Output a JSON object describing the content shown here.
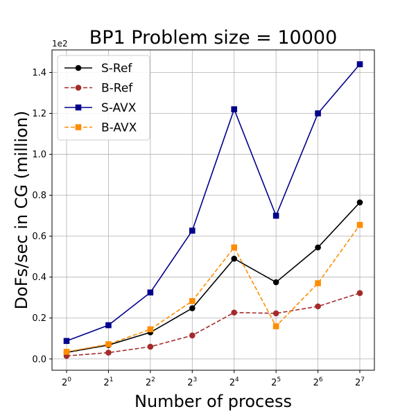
{
  "chart_data": {
    "type": "line",
    "title": "BP1 Problem size = 10000",
    "xlabel": "Number of process",
    "ylabel": "DoFs/sec in CG (million)",
    "y_offset_text": "1e2",
    "x_ticks": [
      {
        "base": "2",
        "exp": "0"
      },
      {
        "base": "2",
        "exp": "1"
      },
      {
        "base": "2",
        "exp": "2"
      },
      {
        "base": "2",
        "exp": "3"
      },
      {
        "base": "2",
        "exp": "4"
      },
      {
        "base": "2",
        "exp": "5"
      },
      {
        "base": "2",
        "exp": "6"
      },
      {
        "base": "2",
        "exp": "7"
      }
    ],
    "x": [
      1,
      2,
      4,
      8,
      16,
      32,
      64,
      128
    ],
    "y_ticks": [
      "0.0",
      "0.2",
      "0.4",
      "0.6",
      "0.8",
      "1.0",
      "1.2",
      "1.4"
    ],
    "y_tick_values": [
      0,
      20,
      40,
      60,
      80,
      100,
      120,
      140
    ],
    "ylim": [
      -5.5,
      151
    ],
    "x_scale": "log2",
    "grid": true,
    "legend_position": "top-left",
    "series": [
      {
        "name": "S-Ref",
        "color": "#000000",
        "dashed": false,
        "marker": "circle",
        "values": [
          3.2,
          6.8,
          13.0,
          24.8,
          49.0,
          37.5,
          54.5,
          76.5
        ]
      },
      {
        "name": "B-Ref",
        "color": "#a52a2a",
        "dashed": true,
        "marker": "circle",
        "values": [
          1.5,
          3.1,
          6.0,
          11.5,
          22.7,
          22.3,
          25.7,
          32.2
        ]
      },
      {
        "name": "S-AVX",
        "color": "#00008b",
        "dashed": false,
        "marker": "square",
        "values": [
          8.8,
          16.5,
          32.5,
          62.7,
          122.0,
          70.0,
          120.0,
          144.0
        ]
      },
      {
        "name": "B-AVX",
        "color": "#ff8c00",
        "dashed": true,
        "marker": "square",
        "values": [
          3.5,
          7.2,
          14.5,
          28.3,
          54.5,
          16.0,
          37.0,
          65.5
        ]
      }
    ]
  }
}
